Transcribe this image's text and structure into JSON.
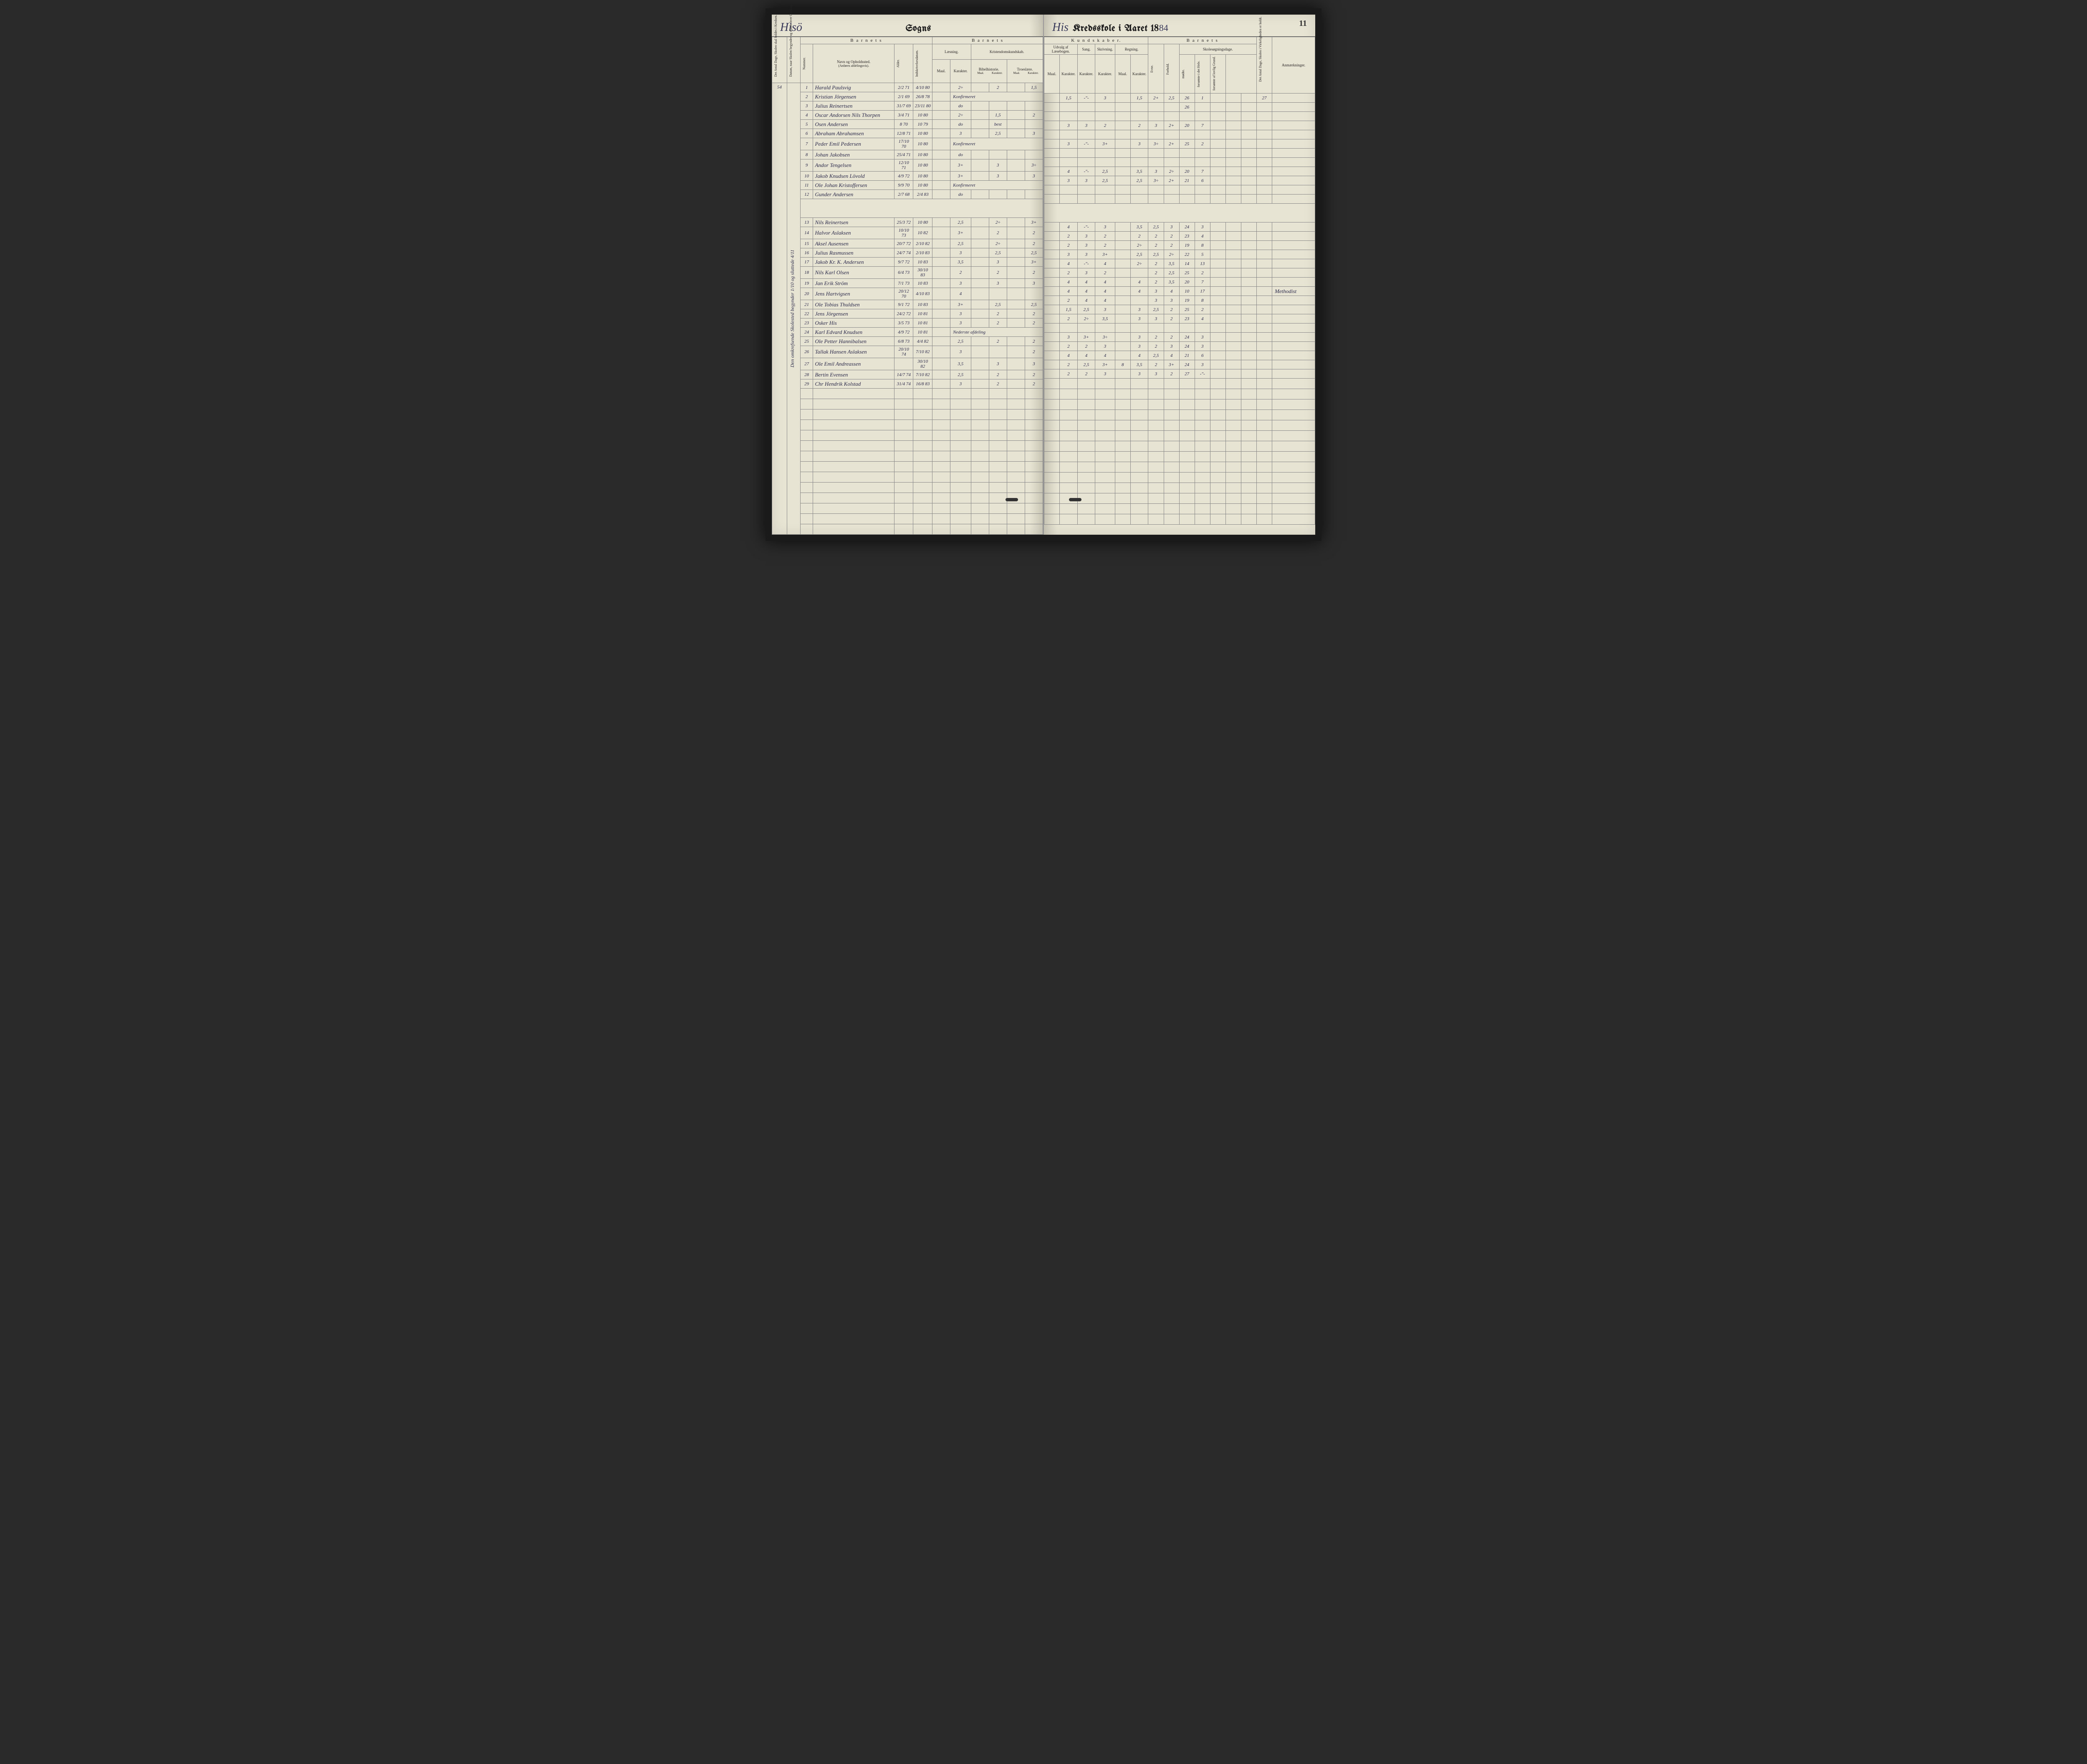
{
  "page_number": "11",
  "title_left": {
    "parish": "Hisö",
    "label_sogns": "Sogns"
  },
  "title_right": {
    "parish": "His",
    "label_kreds": "Kredsskole i Aaret 18",
    "year_suffix": "84"
  },
  "headers": {
    "antal_dage": "Det Antal Dage, Skolen skal holdes i Kredsen.",
    "datum": "Datum, naar Skolen begynder og slutter hver Omgang.",
    "nummer": "Nummer.",
    "navn": "Navn og Opholdssted.",
    "navn_sub": "(Anføres afdelingsvis).",
    "alder": "Alder.",
    "indskriv": "Indskrivelsesdatum.",
    "barnets": "B a r n e t s",
    "laesning": "Læsning.",
    "kristendom": "Kristendomskundskab.",
    "bibel": "Bibelhistorie.",
    "troes": "Troeslære.",
    "maal": "Maal.",
    "karakter": "Karakter.",
    "kundskaber": "K u n d s k a b e r.",
    "udvalg": "Udvalg af Læsebogen.",
    "sang": "Sang.",
    "skriv": "Skrivning.",
    "regning": "Regning.",
    "skolesog": "Skolesøgningsdage.",
    "evne": "Evne.",
    "forhold": "Forhold.",
    "modte": "mødte.",
    "forsomte_gyl": "forsømte i det Hele.",
    "forsomte_lov": "forsømte af lovlig Grund.",
    "antal_virk": "Det Antal Dage, Skolen i Virkeligheden er holdt.",
    "anmerk": "Anmærkninger."
  },
  "margin_note_left": "Den omkrefsende Skolested begynder 1/10 og sluttede 4/11",
  "days_total": "54",
  "students_a": [
    {
      "n": "1",
      "name": "Harald Paulsvig",
      "b": "2/2 71",
      "d": "4/10 80",
      "l": "2÷",
      "bh": "2",
      "tr": "1,5",
      "ud": "1,5",
      "udk": "-\"-",
      "sa": "3",
      "sk": "",
      "rg": "1,5",
      "ev": "2+",
      "fo": "2,5",
      "mo": "26",
      "f1": "1",
      "f2": "",
      "tot": "27"
    },
    {
      "n": "2",
      "name": "Kristian Jörgensen",
      "b": "2/1 69",
      "d": "26/8 78",
      "l": "Konfirmeret",
      "bh": "",
      "tr": "",
      "ud": "",
      "udk": "",
      "sa": "",
      "sk": "",
      "rg": "",
      "ev": "",
      "fo": "",
      "mo": "26",
      "f1": "",
      "f2": "",
      "tot": ""
    },
    {
      "n": "3",
      "name": "Julius Reinertsen",
      "b": "31/7 69",
      "d": "23/11 80",
      "l": "do",
      "bh": "",
      "tr": "",
      "ud": "",
      "udk": "",
      "sa": "",
      "sk": "",
      "rg": "",
      "ev": "",
      "fo": "",
      "mo": "",
      "f1": "",
      "f2": "",
      "tot": ""
    },
    {
      "n": "4",
      "name": "Oscar Andorsen Nils Thorpen",
      "b": "3/4 71",
      "d": "10 80",
      "l": "2÷",
      "bh": "1,5",
      "tr": "2",
      "ud": "3",
      "udk": "3",
      "sa": "2",
      "sk": "",
      "rg": "2",
      "ev": "3",
      "fo": "2+",
      "mo": "20",
      "f1": "7",
      "f2": "",
      "tot": ""
    },
    {
      "n": "5",
      "name": "Osen Andersen",
      "b": "8 70",
      "d": "10 79",
      "l": "do",
      "bh": "best",
      "tr": "",
      "ud": "",
      "udk": "",
      "sa": "",
      "sk": "",
      "rg": "",
      "ev": "",
      "fo": "",
      "mo": "",
      "f1": "",
      "f2": "",
      "tot": ""
    },
    {
      "n": "6",
      "name": "Abraham Abrahamsen",
      "b": "12/8 71",
      "d": "10 80",
      "l": "3",
      "bh": "2,5",
      "tr": "3",
      "ud": "3",
      "udk": "-\"-",
      "sa": "3+",
      "sk": "",
      "rg": "3",
      "ev": "3÷",
      "fo": "2+",
      "mo": "25",
      "f1": "2",
      "f2": "",
      "tot": ""
    },
    {
      "n": "7",
      "name": "Peder Emil Pedersen",
      "b": "17/10 70",
      "d": "10 80",
      "l": "Konfirmeret",
      "bh": "",
      "tr": "",
      "ud": "",
      "udk": "",
      "sa": "",
      "sk": "",
      "rg": "",
      "ev": "",
      "fo": "",
      "mo": "",
      "f1": "",
      "f2": "",
      "tot": ""
    },
    {
      "n": "8",
      "name": "Johan Jakobsen",
      "b": "25/4 71",
      "d": "10 80",
      "l": "do",
      "bh": "",
      "tr": "",
      "ud": "",
      "udk": "",
      "sa": "",
      "sk": "",
      "rg": "",
      "ev": "",
      "fo": "",
      "mo": "",
      "f1": "",
      "f2": "",
      "tot": ""
    },
    {
      "n": "9",
      "name": "Andor Tengelsen",
      "b": "12/10 71",
      "d": "10 80",
      "l": "3+",
      "bh": "3",
      "tr": "3÷",
      "ud": "4",
      "udk": "-\"-",
      "sa": "2,5",
      "sk": "",
      "rg": "3,5",
      "ev": "3",
      "fo": "2÷",
      "mo": "20",
      "f1": "7",
      "f2": "",
      "tot": ""
    },
    {
      "n": "10",
      "name": "Jakob Knudsen Lövold",
      "b": "4/9 72",
      "d": "10 80",
      "l": "3+",
      "bh": "3",
      "tr": "3",
      "ud": "3",
      "udk": "3",
      "sa": "2,5",
      "sk": "",
      "rg": "2,5",
      "ev": "3÷",
      "fo": "2+",
      "mo": "21",
      "f1": "6",
      "f2": "",
      "tot": ""
    },
    {
      "n": "11",
      "name": "Ole Johan Kristoffersen",
      "b": "9/9 70",
      "d": "10 80",
      "l": "Konfirmeret",
      "bh": "",
      "tr": "",
      "ud": "",
      "udk": "",
      "sa": "",
      "sk": "",
      "rg": "",
      "ev": "",
      "fo": "",
      "mo": "",
      "f1": "",
      "f2": "",
      "tot": ""
    },
    {
      "n": "12",
      "name": "Gunder Andersen",
      "b": "2/7 68",
      "d": "2/4 83",
      "l": "do",
      "bh": "",
      "tr": "",
      "ud": "",
      "udk": "",
      "sa": "",
      "sk": "",
      "rg": "",
      "ev": "",
      "fo": "",
      "mo": "",
      "f1": "",
      "f2": "",
      "tot": ""
    }
  ],
  "students_b": [
    {
      "n": "13",
      "name": "Nils Reinertsen",
      "b": "25/3 72",
      "d": "10 80",
      "l": "2,5",
      "bh": "2÷",
      "tr": "3+",
      "ud": "4",
      "udk": "-\"-",
      "sa": "3",
      "sk": "",
      "rg": "3,5",
      "ev": "2,5",
      "fo": "3",
      "mo": "24",
      "f1": "3",
      "f2": "",
      "tot": ""
    },
    {
      "n": "14",
      "name": "Halvor Aslaksen",
      "b": "10/10 73",
      "d": "10 82",
      "l": "3+",
      "bh": "2",
      "tr": "2",
      "ud": "2",
      "udk": "3",
      "sa": "2",
      "sk": "",
      "rg": "2",
      "ev": "2",
      "fo": "2",
      "mo": "23",
      "f1": "4",
      "f2": "",
      "tot": ""
    },
    {
      "n": "15",
      "name": "Aksel Ausensen",
      "b": "20/7 72",
      "d": "2/10 82",
      "l": "2,5",
      "bh": "2÷",
      "tr": "2",
      "ud": "2",
      "udk": "3",
      "sa": "2",
      "sk": "",
      "rg": "2÷",
      "ev": "2",
      "fo": "2",
      "mo": "19",
      "f1": "8",
      "f2": "",
      "tot": ""
    },
    {
      "n": "16",
      "name": "Julius Rasmussen",
      "b": "24/7 74",
      "d": "2/10 83",
      "l": "3",
      "bh": "2,5",
      "tr": "2,5",
      "ud": "3",
      "udk": "3",
      "sa": "3+",
      "sk": "",
      "rg": "2,5",
      "ev": "2,5",
      "fo": "2÷",
      "mo": "22",
      "f1": "5",
      "f2": "",
      "tot": ""
    },
    {
      "n": "17",
      "name": "Jakob Kr. K. Andersen",
      "b": "9/7 72",
      "d": "10 83",
      "l": "3,5",
      "bh": "3",
      "tr": "3+",
      "ud": "4",
      "udk": "-\"-",
      "sa": "4",
      "sk": "",
      "rg": "2÷",
      "ev": "2",
      "fo": "3,5",
      "mo": "14",
      "f1": "13",
      "f2": "",
      "tot": ""
    },
    {
      "n": "18",
      "name": "Nils Karl Olsen",
      "b": "6/4 73",
      "d": "30/10 83",
      "l": "2",
      "bh": "2",
      "tr": "2",
      "ud": "2",
      "udk": "3",
      "sa": "2",
      "sk": "",
      "rg": "",
      "ev": "2",
      "fo": "2,5",
      "mo": "25",
      "f1": "2",
      "f2": "",
      "tot": ""
    },
    {
      "n": "19",
      "name": "Jan Erik Ström",
      "b": "7/1 73",
      "d": "10 83",
      "l": "3",
      "bh": "3",
      "tr": "3",
      "ud": "4",
      "udk": "4",
      "sa": "4",
      "sk": "",
      "rg": "4",
      "ev": "2",
      "fo": "3,5",
      "mo": "20",
      "f1": "7",
      "f2": "",
      "tot": ""
    },
    {
      "n": "20",
      "name": "Jens Hartvigsen",
      "b": "20/12 70",
      "d": "4/10 83",
      "l": "4",
      "bh": "",
      "tr": "",
      "ud": "4",
      "udk": "4",
      "sa": "4",
      "sk": "",
      "rg": "4",
      "ev": "3",
      "fo": "4",
      "mo": "10",
      "f1": "17",
      "f2": "",
      "tot": "",
      "anm": "Methodist"
    },
    {
      "n": "21",
      "name": "Ole Tobias Thuldsen",
      "b": "9/1 72",
      "d": "10 83",
      "l": "3+",
      "bh": "2,5",
      "tr": "2,5",
      "ud": "2",
      "udk": "4",
      "sa": "4",
      "sk": "",
      "rg": "",
      "ev": "3",
      "fo": "3",
      "mo": "19",
      "f1": "8",
      "f2": "",
      "tot": ""
    },
    {
      "n": "22",
      "name": "Jens Jörgensen",
      "b": "24/2 72",
      "d": "10 81",
      "l": "3",
      "bh": "2",
      "tr": "2",
      "ud": "1,5",
      "udk": "2,5",
      "sa": "3",
      "sk": "",
      "rg": "3",
      "ev": "2,5",
      "fo": "2",
      "mo": "25",
      "f1": "2",
      "f2": "",
      "tot": ""
    },
    {
      "n": "23",
      "name": "Osker His",
      "b": "3/5 73",
      "d": "10 81",
      "l": "3",
      "bh": "2",
      "tr": "2",
      "ud": "2",
      "udk": "2÷",
      "sa": "3,5",
      "sk": "",
      "rg": "3",
      "ev": "3",
      "fo": "2",
      "mo": "23",
      "f1": "4",
      "f2": "",
      "tot": ""
    },
    {
      "n": "24",
      "name": "Karl Edvard Knudsen",
      "b": "4/9 72",
      "d": "10 81",
      "l": "Nederste afdeling",
      "bh": "",
      "tr": "",
      "ud": "",
      "udk": "",
      "sa": "",
      "sk": "",
      "rg": "",
      "ev": "",
      "fo": "",
      "mo": "",
      "f1": "",
      "f2": "",
      "tot": ""
    },
    {
      "n": "25",
      "name": "Ole Petter Hannibalsen",
      "b": "6/8 73",
      "d": "4/4 82",
      "l": "2,5",
      "bh": "2",
      "tr": "2",
      "ud": "3",
      "udk": "3+",
      "sa": "3÷",
      "sk": "",
      "rg": "3",
      "ev": "2",
      "fo": "2",
      "mo": "24",
      "f1": "3",
      "f2": "",
      "tot": ""
    },
    {
      "n": "26",
      "name": "Tallak Hansen Aslaksen",
      "b": "20/10 74",
      "d": "7/10 82",
      "l": "3",
      "bh": "",
      "tr": "2",
      "ud": "2",
      "udk": "2",
      "sa": "3",
      "sk": "",
      "rg": "3",
      "ev": "2",
      "fo": "3",
      "mo": "24",
      "f1": "3",
      "f2": "",
      "tot": ""
    },
    {
      "n": "27",
      "name": "Ole Emil Andreassen",
      "b": "",
      "d": "30/10 82",
      "l": "3,5",
      "bh": "3",
      "tr": "3",
      "ud": "4",
      "udk": "4",
      "sa": "4",
      "sk": "",
      "rg": "4",
      "ev": "2,5",
      "fo": "4",
      "mo": "21",
      "f1": "6",
      "f2": "",
      "tot": ""
    },
    {
      "n": "28",
      "name": "Bertin Evensen",
      "b": "14/7 74",
      "d": "7/10 82",
      "l": "2,5",
      "bh": "2",
      "tr": "2",
      "ud": "2",
      "udk": "2,5",
      "sa": "3+",
      "sk": "8",
      "rg": "3,5",
      "ev": "2",
      "fo": "3+",
      "mo": "24",
      "f1": "3",
      "f2": "",
      "tot": ""
    },
    {
      "n": "29",
      "name": "Chr Hendrik Kolstad",
      "b": "31/4 74",
      "d": "16/8 83",
      "l": "3",
      "bh": "2",
      "tr": "2",
      "ud": "2",
      "udk": "2",
      "sa": "3",
      "sk": "",
      "rg": "3",
      "ev": "3",
      "fo": "2",
      "mo": "27",
      "f1": "-\"-",
      "f2": "",
      "tot": ""
    }
  ],
  "colors": {
    "paper": "#e8e4d4",
    "ink": "#2a2a4a",
    "print": "#1a1a1a",
    "rule": "#888888"
  }
}
